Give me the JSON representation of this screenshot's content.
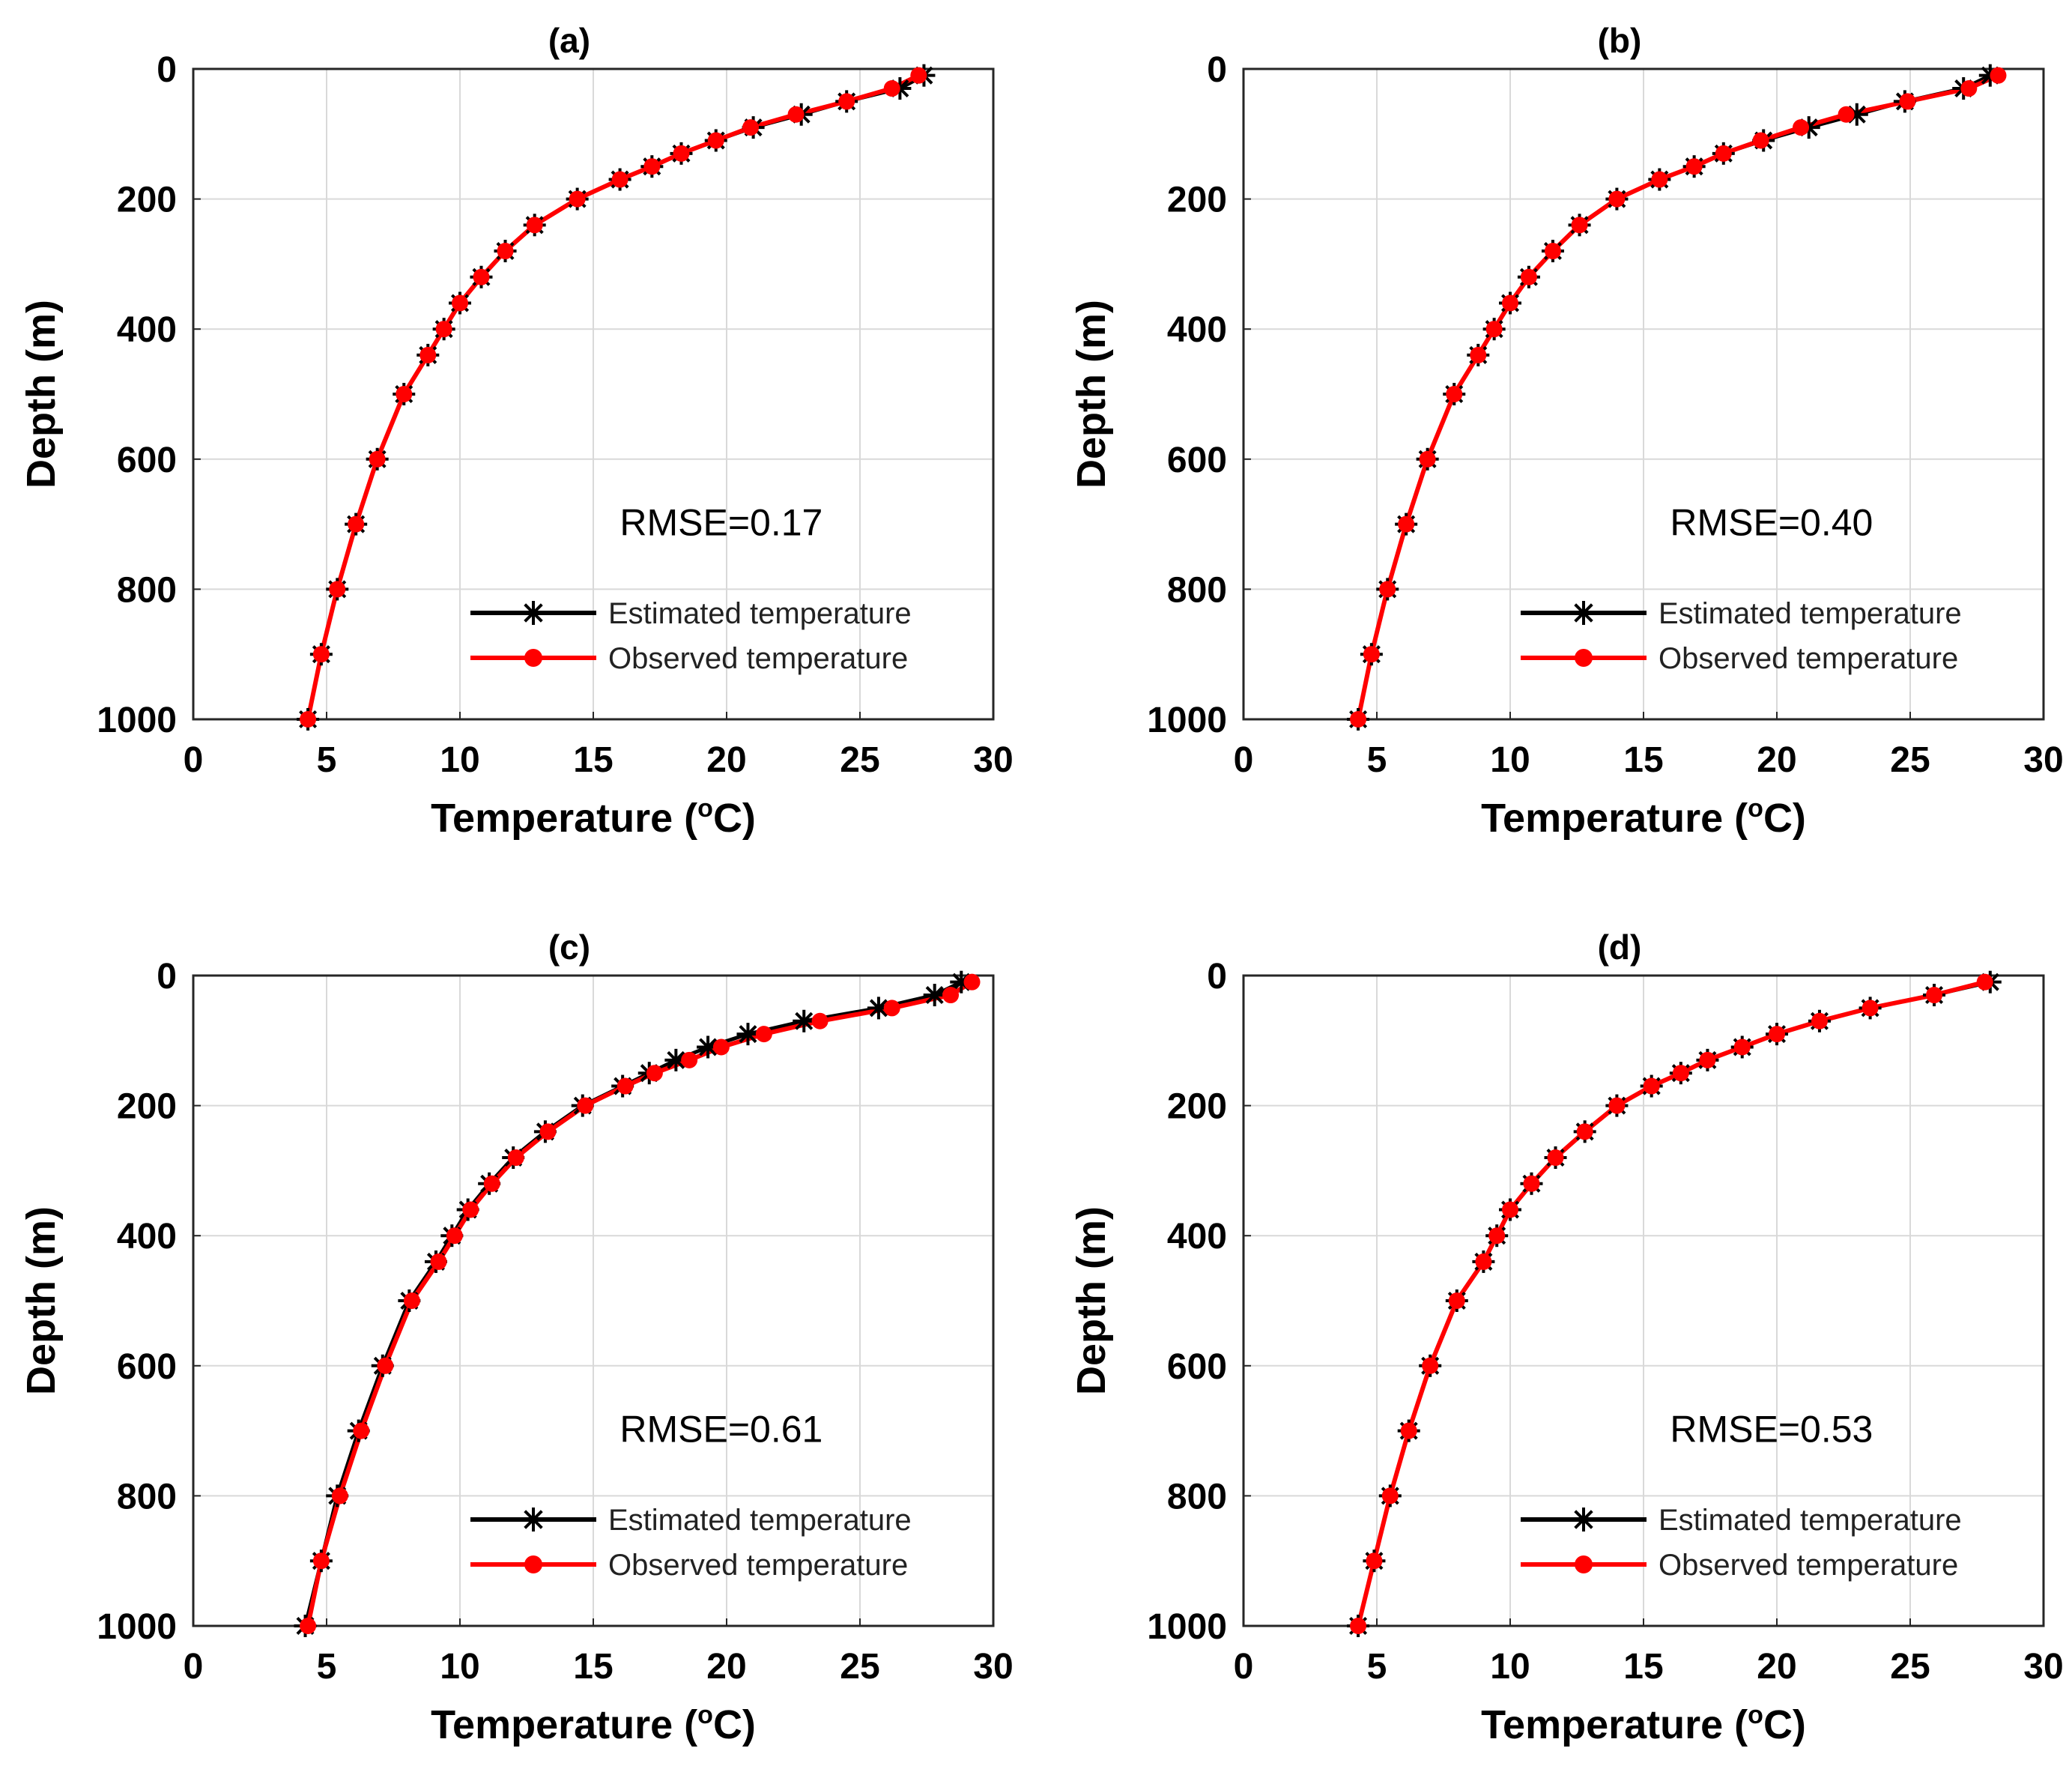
{
  "chart_data": [
    {
      "type": "line",
      "title": "(a)",
      "xlabel": "Temperature (",
      "xlabel_sup": "o",
      "xlabel_end": "C)",
      "ylabel": "Depth (m)",
      "xlim": [
        0,
        30
      ],
      "ylim": [
        0,
        1000
      ],
      "y_reversed": true,
      "xticks": [
        "0",
        "5",
        "10",
        "15",
        "20",
        "25",
        "30"
      ],
      "yticks": [
        "0",
        "200",
        "400",
        "600",
        "800",
        "1000"
      ],
      "grid": true,
      "annotation": "RMSE=0.17",
      "legend": {
        "location": "bottom-right",
        "entries": [
          "Estimated temperature",
          "Observed temperature"
        ]
      },
      "series": [
        {
          "name": "Estimated temperature",
          "color": "#000000",
          "marker": "asterisk",
          "x": [
            27.4,
            26.5,
            24.5,
            22.8,
            21.0,
            19.6,
            18.3,
            17.2,
            16.0,
            14.4,
            12.8,
            11.7,
            10.8,
            10.0,
            9.4,
            8.8,
            7.9,
            6.9,
            6.1,
            5.4,
            4.8,
            4.3
          ],
          "y": [
            10,
            30,
            50,
            70,
            90,
            110,
            130,
            150,
            170,
            200,
            240,
            280,
            320,
            360,
            400,
            440,
            500,
            600,
            700,
            800,
            900,
            1000
          ]
        },
        {
          "name": "Observed temperature",
          "color": "#ff0000",
          "marker": "circle",
          "x": [
            27.2,
            26.2,
            24.5,
            22.6,
            20.9,
            19.6,
            18.3,
            17.2,
            16.0,
            14.4,
            12.8,
            11.7,
            10.8,
            10.0,
            9.4,
            8.8,
            7.9,
            6.9,
            6.1,
            5.4,
            4.8,
            4.3
          ],
          "y": [
            10,
            30,
            50,
            70,
            90,
            110,
            130,
            150,
            170,
            200,
            240,
            280,
            320,
            360,
            400,
            440,
            500,
            600,
            700,
            800,
            900,
            1000
          ]
        }
      ]
    },
    {
      "type": "line",
      "title": "(b)",
      "xlabel": "Temperature (",
      "xlabel_sup": "o",
      "xlabel_end": "C)",
      "ylabel": "Depth (m)",
      "xlim": [
        0,
        30
      ],
      "ylim": [
        0,
        1000
      ],
      "y_reversed": true,
      "xticks": [
        "0",
        "5",
        "10",
        "15",
        "20",
        "25",
        "30"
      ],
      "yticks": [
        "0",
        "200",
        "400",
        "600",
        "800",
        "1000"
      ],
      "grid": true,
      "annotation": "RMSE=0.40",
      "legend": {
        "location": "bottom-right",
        "entries": [
          "Estimated temperature",
          "Observed temperature"
        ]
      },
      "series": [
        {
          "name": "Estimated temperature",
          "color": "#000000",
          "marker": "asterisk",
          "x": [
            28.0,
            27.0,
            24.8,
            23.0,
            21.2,
            19.5,
            18.0,
            16.9,
            15.6,
            14.0,
            12.6,
            11.6,
            10.7,
            10.0,
            9.4,
            8.8,
            7.9,
            6.9,
            6.1,
            5.4,
            4.8,
            4.3
          ],
          "y": [
            10,
            30,
            50,
            70,
            90,
            110,
            130,
            150,
            170,
            200,
            240,
            280,
            320,
            360,
            400,
            440,
            500,
            600,
            700,
            800,
            900,
            1000
          ]
        },
        {
          "name": "Observed temperature",
          "color": "#ff0000",
          "marker": "circle",
          "x": [
            28.3,
            27.2,
            24.9,
            22.6,
            20.9,
            19.4,
            18.0,
            16.9,
            15.6,
            14.0,
            12.6,
            11.6,
            10.7,
            10.0,
            9.4,
            8.8,
            7.9,
            6.9,
            6.1,
            5.4,
            4.8,
            4.3
          ],
          "y": [
            10,
            30,
            50,
            70,
            90,
            110,
            130,
            150,
            170,
            200,
            240,
            280,
            320,
            360,
            400,
            440,
            500,
            600,
            700,
            800,
            900,
            1000
          ]
        }
      ]
    },
    {
      "type": "line",
      "title": "(c)",
      "xlabel": "Temperature (",
      "xlabel_sup": "o",
      "xlabel_end": "C)",
      "ylabel": "Depth (m)",
      "xlim": [
        0,
        30
      ],
      "ylim": [
        0,
        1000
      ],
      "y_reversed": true,
      "xticks": [
        "0",
        "5",
        "10",
        "15",
        "20",
        "25",
        "30"
      ],
      "yticks": [
        "0",
        "200",
        "400",
        "600",
        "800",
        "1000"
      ],
      "grid": true,
      "annotation": "RMSE=0.61",
      "legend": {
        "location": "bottom-right",
        "entries": [
          "Estimated temperature",
          "Observed temperature"
        ]
      },
      "series": [
        {
          "name": "Estimated temperature",
          "color": "#000000",
          "marker": "asterisk",
          "x": [
            28.8,
            27.8,
            25.7,
            22.9,
            20.8,
            19.3,
            18.1,
            17.1,
            16.1,
            14.6,
            13.2,
            12.0,
            11.1,
            10.3,
            9.7,
            9.1,
            8.1,
            7.1,
            6.2,
            5.4,
            4.8,
            4.2
          ],
          "y": [
            10,
            30,
            50,
            70,
            90,
            110,
            130,
            150,
            170,
            200,
            240,
            280,
            320,
            360,
            400,
            440,
            500,
            600,
            700,
            800,
            900,
            1000
          ]
        },
        {
          "name": "Observed temperature",
          "color": "#ff0000",
          "marker": "circle",
          "x": [
            29.2,
            28.4,
            26.2,
            23.5,
            21.4,
            19.8,
            18.6,
            17.3,
            16.2,
            14.7,
            13.3,
            12.1,
            11.2,
            10.4,
            9.8,
            9.2,
            8.2,
            7.2,
            6.3,
            5.5,
            4.8,
            4.3
          ],
          "y": [
            10,
            30,
            50,
            70,
            90,
            110,
            130,
            150,
            170,
            200,
            240,
            280,
            320,
            360,
            400,
            440,
            500,
            600,
            700,
            800,
            900,
            1000
          ]
        }
      ]
    },
    {
      "type": "line",
      "title": "(d)",
      "xlabel": "Temperature (",
      "xlabel_sup": "o",
      "xlabel_end": "C)",
      "ylabel": "Depth (m)",
      "xlim": [
        0,
        30
      ],
      "ylim": [
        0,
        1000
      ],
      "y_reversed": true,
      "xticks": [
        "0",
        "5",
        "10",
        "15",
        "20",
        "25",
        "30"
      ],
      "yticks": [
        "0",
        "200",
        "400",
        "600",
        "800",
        "1000"
      ],
      "grid": true,
      "annotation": "RMSE=0.53",
      "legend": {
        "location": "bottom-right",
        "entries": [
          "Estimated temperature",
          "Observed temperature"
        ]
      },
      "series": [
        {
          "name": "Estimated temperature",
          "color": "#000000",
          "marker": "asterisk",
          "x": [
            28.0,
            25.9,
            23.5,
            21.6,
            20.0,
            18.7,
            17.4,
            16.4,
            15.3,
            14.0,
            12.8,
            11.7,
            10.8,
            10.0,
            9.5,
            9.0,
            8.0,
            7.0,
            6.2,
            5.5,
            4.9,
            4.3
          ],
          "y": [
            10,
            30,
            50,
            70,
            90,
            110,
            130,
            150,
            170,
            200,
            240,
            280,
            320,
            360,
            400,
            440,
            500,
            600,
            700,
            800,
            900,
            1000
          ]
        },
        {
          "name": "Observed temperature",
          "color": "#ff0000",
          "marker": "circle",
          "x": [
            27.8,
            25.9,
            23.5,
            21.6,
            20.0,
            18.7,
            17.4,
            16.4,
            15.3,
            14.0,
            12.8,
            11.7,
            10.8,
            10.0,
            9.5,
            9.0,
            8.0,
            7.0,
            6.2,
            5.5,
            4.9,
            4.3
          ],
          "y": [
            10,
            30,
            50,
            70,
            90,
            110,
            130,
            150,
            170,
            200,
            240,
            280,
            320,
            360,
            400,
            440,
            500,
            600,
            700,
            800,
            900,
            1000
          ]
        }
      ]
    }
  ]
}
